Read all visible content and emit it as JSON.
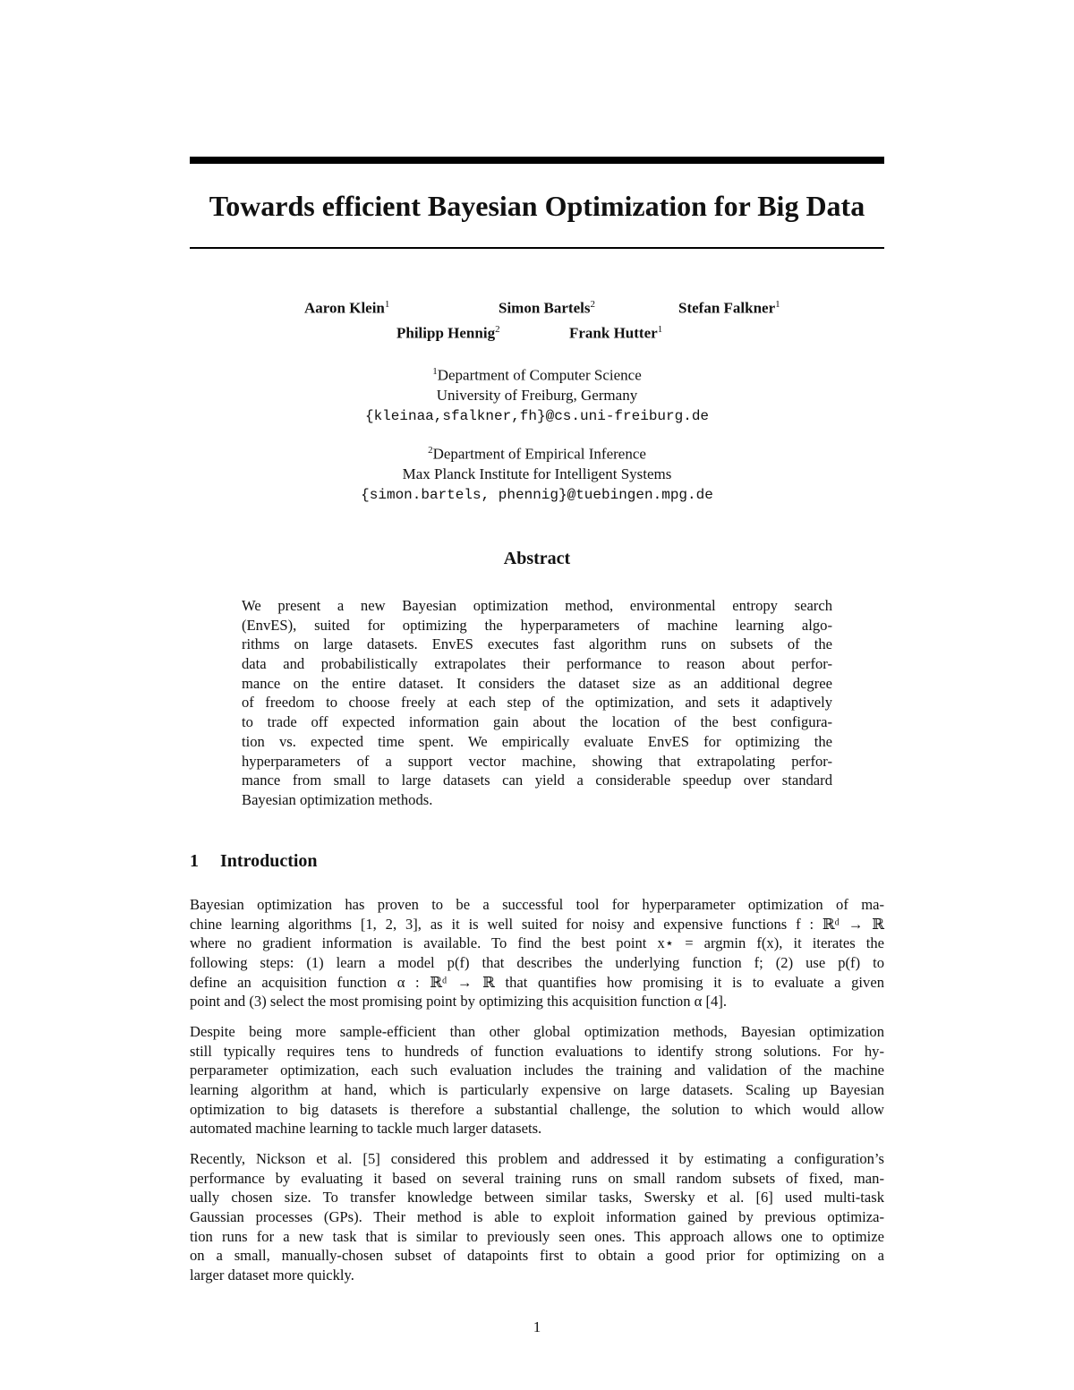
{
  "title": "Towards efficient Bayesian Optimization for Big Data",
  "authors": [
    {
      "name": "Aaron Klein",
      "aff": "1"
    },
    {
      "name": "Simon Bartels",
      "aff": "2"
    },
    {
      "name": "Stefan Falkner",
      "aff": "1"
    },
    {
      "name": "Philipp Hennig",
      "aff": "2"
    },
    {
      "name": "Frank Hutter",
      "aff": "1"
    }
  ],
  "affiliations": [
    {
      "num": "1",
      "dept": "Department of Computer Science",
      "inst": "University of Freiburg, Germany",
      "email": "{kleinaa,sfalkner,fh}@cs.uni-freiburg.de"
    },
    {
      "num": "2",
      "dept": "Department of Empirical Inference",
      "inst": "Max Planck Institute for Intelligent Systems",
      "email": "{simon.bartels, phennig}@tuebingen.mpg.de"
    }
  ],
  "abstract": {
    "heading": "Abstract",
    "lines": [
      "We present a new Bayesian optimization method, environmental entropy search",
      "(EnvES), suited for optimizing the hyperparameters of machine learning algo-",
      "rithms on large datasets. EnvES executes fast algorithm runs on subsets of the",
      "data and probabilistically extrapolates their performance to reason about perfor-",
      "mance on the entire dataset. It considers the dataset size as an additional degree",
      "of freedom to choose freely at each step of the optimization, and sets it adaptively",
      "to trade off expected information gain about the location of the best configura-",
      "tion vs. expected time spent. We empirically evaluate EnvES for optimizing the",
      "hyperparameters of a support vector machine, showing that extrapolating perfor-",
      "mance from small to large datasets can yield a considerable speedup over standard",
      "Bayesian optimization methods."
    ]
  },
  "section1": {
    "number": "1",
    "title": "Introduction",
    "paragraphs": [
      [
        "Bayesian optimization has proven to be a successful tool for hyperparameter optimization of ma-",
        "chine learning algorithms [1, 2, 3], as it is well suited for noisy and expensive functions f : ℝᵈ → ℝ",
        "where no gradient information is available. To find the best point x⋆ = argmin f(x), it iterates the",
        "following steps: (1) learn a model p(f) that describes the underlying function f; (2) use p(f) to",
        "define an acquisition function α : ℝᵈ → ℝ that quantifies how promising it is to evaluate a given",
        "point and (3) select the most promising point by optimizing this acquisition function α [4]."
      ],
      [
        "Despite being more sample-efficient than other global optimization methods, Bayesian optimization",
        "still typically requires tens to hundreds of function evaluations to identify strong solutions. For hy-",
        "perparameter optimization, each such evaluation includes the training and validation of the machine",
        "learning algorithm at hand, which is particularly expensive on large datasets. Scaling up Bayesian",
        "optimization to big datasets is therefore a substantial challenge, the solution to which would allow",
        "automated machine learning to tackle much larger datasets."
      ],
      [
        "Recently, Nickson et al. [5] considered this problem and addressed it by estimating a configuration’s",
        "performance by evaluating it based on several training runs on small random subsets of fixed, man-",
        "ually chosen size. To transfer knowledge between similar tasks, Swersky et al. [6] used multi-task",
        "Gaussian processes (GPs). Their method is able to exploit information gained by previous optimiza-",
        "tion runs for a new task that is similar to previously seen ones. This approach allows one to optimize",
        "on a small, manually-chosen subset of datapoints first to obtain a good prior for optimizing on a",
        "larger dataset more quickly."
      ]
    ]
  },
  "page_number": "1"
}
